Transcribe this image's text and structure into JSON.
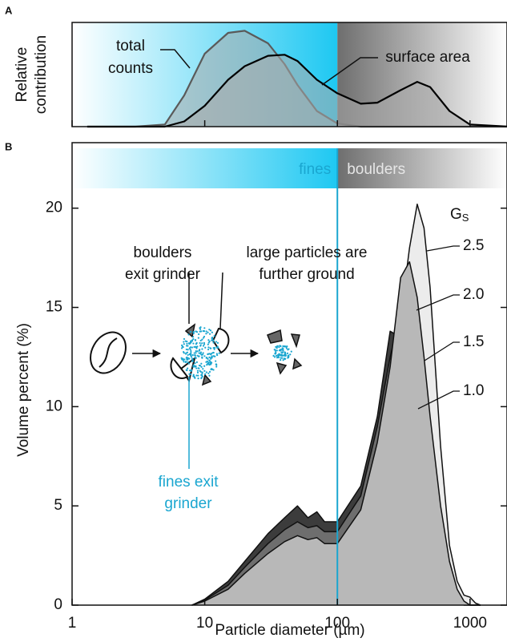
{
  "chart_data": [
    {
      "type": "area",
      "panel": "A",
      "ylabel": [
        "Relative",
        "contribution"
      ],
      "x": [
        1.3,
        3,
        5,
        7,
        10,
        15,
        20,
        30,
        40,
        50,
        70,
        100,
        150,
        200,
        300,
        400,
        500,
        700,
        1000,
        2000
      ],
      "series": [
        {
          "name": "total counts",
          "color": "#5a5a5a",
          "values": [
            0,
            0,
            0.02,
            0.3,
            0.7,
            0.9,
            0.92,
            0.8,
            0.6,
            0.4,
            0.15,
            0.03,
            0,
            0,
            0,
            0,
            0,
            0,
            0,
            0
          ]
        },
        {
          "name": "surface area",
          "color": "#000000",
          "values": [
            0,
            0,
            0,
            0.05,
            0.2,
            0.45,
            0.58,
            0.68,
            0.69,
            0.63,
            0.45,
            0.32,
            0.22,
            0.23,
            0.35,
            0.43,
            0.38,
            0.15,
            0.02,
            0
          ]
        }
      ],
      "annotations": [
        [
          "total",
          "counts"
        ],
        [
          "surface area"
        ]
      ],
      "divider": 100,
      "xlim": [
        1,
        1900
      ],
      "ylim": [
        0,
        1
      ],
      "xticks": [
        1,
        10,
        100,
        1000
      ],
      "log_x": true
    },
    {
      "type": "area",
      "panel": "B",
      "xlabel": "Particle diameter (µm)",
      "ylabel": "Volume percent (%)",
      "x": [
        8,
        10,
        15,
        20,
        30,
        40,
        50,
        60,
        70,
        80,
        100,
        150,
        200,
        250,
        300,
        350,
        400,
        450,
        500,
        600,
        700,
        800,
        900,
        1000,
        1100,
        1200
      ],
      "series": [
        {
          "name": "2.5",
          "color": "#ececec",
          "values": [
            0,
            0.15,
            0.6,
            1.2,
            2.0,
            2.5,
            2.7,
            2.5,
            2.5,
            2.1,
            2.1,
            3.8,
            7.0,
            10.5,
            14.5,
            18.0,
            20.2,
            19.0,
            16.0,
            8.0,
            3.0,
            1.2,
            0.5,
            0.4,
            0.1,
            0
          ]
        },
        {
          "name": "1.0",
          "color": "#3c3c3c",
          "values": [
            0,
            0.3,
            1.2,
            2.2,
            3.6,
            4.4,
            5.0,
            4.4,
            4.7,
            4.2,
            4.2,
            6.0,
            9.5,
            13.8,
            13.5,
            12.0,
            9.5,
            7.0,
            5.0,
            2.5,
            1.2,
            0.4,
            0,
            0,
            0,
            0
          ]
        },
        {
          "name": "1.5",
          "color": "#6e6e6e",
          "values": [
            0,
            0.25,
            1.0,
            1.9,
            3.1,
            3.8,
            4.2,
            3.9,
            4.0,
            3.7,
            3.7,
            5.5,
            9.0,
            12.5,
            14.8,
            15.2,
            13.0,
            10.5,
            8.0,
            4.0,
            1.8,
            0.6,
            0.1,
            0,
            0,
            0
          ]
        },
        {
          "name": "2.0",
          "color": "#b8b8b8",
          "values": [
            0,
            0.2,
            0.8,
            1.6,
            2.6,
            3.2,
            3.5,
            3.3,
            3.4,
            3.1,
            3.1,
            4.8,
            8.2,
            12.0,
            16.5,
            17.3,
            15.5,
            12.5,
            9.5,
            5.0,
            2.2,
            0.8,
            0.2,
            0,
            0,
            0
          ]
        }
      ],
      "legend_title": "G",
      "legend_title_subscript": "S",
      "legend_order": [
        0,
        3,
        2,
        1
      ],
      "regions": [
        "fines",
        "boulders"
      ],
      "annotations": [
        [
          "boulders",
          "exit grinder"
        ],
        [
          "large particles are",
          "further ground"
        ],
        [
          "fines exit",
          "grinder"
        ]
      ],
      "divider": 100,
      "divider_color": "#1aa6d0",
      "xlim": [
        1,
        1900
      ],
      "ylim": [
        0,
        23.3
      ],
      "xticks": [
        1,
        10,
        100,
        1000
      ],
      "yticks": [
        0,
        5,
        10,
        15,
        20
      ],
      "log_x": true
    }
  ]
}
